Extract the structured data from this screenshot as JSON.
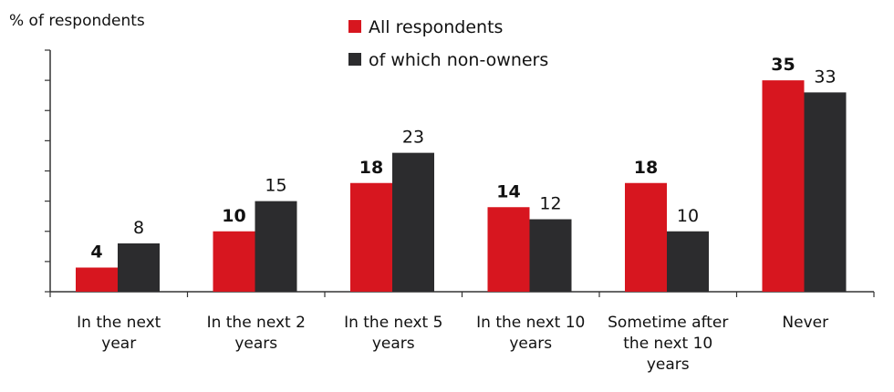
{
  "chart_data": {
    "type": "bar",
    "ylabel": "% of respondents",
    "categories": [
      [
        "In the next",
        "year"
      ],
      [
        "In the next 2",
        "years"
      ],
      [
        "In the next 5",
        "years"
      ],
      [
        "In the next 10",
        "years"
      ],
      [
        "Sometime after",
        "the next 10",
        "years"
      ],
      [
        "Never"
      ]
    ],
    "series": [
      {
        "name": "All respondents",
        "values": [
          4,
          10,
          18,
          14,
          18,
          35
        ],
        "color": "#d7161f",
        "label_style": "bold"
      },
      {
        "name": "of which non-owners",
        "values": [
          8,
          15,
          23,
          12,
          10,
          33
        ],
        "color": "#2c2c2e",
        "label_style": "normal"
      }
    ],
    "ylim": [
      0,
      40
    ],
    "ytick_step": 5,
    "grid": false,
    "legend_position": "top-center"
  }
}
